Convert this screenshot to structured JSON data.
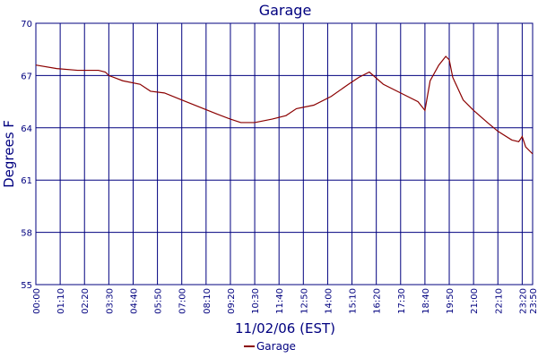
{
  "chart_data": {
    "type": "line",
    "title": "Garage",
    "x_label": "11/02/06 (EST)",
    "y_label": "Degrees F",
    "x": [
      0,
      60,
      120,
      180,
      200,
      210,
      250,
      300,
      330,
      370,
      420,
      470,
      520,
      560,
      590,
      630,
      680,
      720,
      750,
      800,
      850,
      900,
      930,
      960,
      1000,
      1050,
      1100,
      1120,
      1135,
      1160,
      1180,
      1190,
      1200,
      1230,
      1260,
      1300,
      1330,
      1370,
      1390,
      1400,
      1410,
      1430
    ],
    "series": [
      {
        "name": "Garage",
        "color": "#8b0000",
        "values": [
          67.6,
          67.4,
          67.3,
          67.3,
          67.2,
          67.0,
          66.7,
          66.5,
          66.1,
          66.0,
          65.6,
          65.2,
          64.8,
          64.5,
          64.3,
          64.3,
          64.5,
          64.7,
          65.1,
          65.3,
          65.8,
          66.5,
          66.9,
          67.2,
          66.5,
          66.0,
          65.5,
          65.0,
          66.7,
          67.6,
          68.1,
          67.9,
          66.9,
          65.6,
          65.0,
          64.3,
          63.8,
          63.3,
          63.2,
          63.5,
          62.9,
          62.5
        ]
      }
    ],
    "xlim": [
      0,
      1430
    ],
    "xticks": [
      {
        "value": 0,
        "label": "00:00"
      },
      {
        "value": 70,
        "label": "01:10"
      },
      {
        "value": 140,
        "label": "02:20"
      },
      {
        "value": 210,
        "label": "03:30"
      },
      {
        "value": 280,
        "label": "04:40"
      },
      {
        "value": 350,
        "label": "05:50"
      },
      {
        "value": 420,
        "label": "07:00"
      },
      {
        "value": 490,
        "label": "08:10"
      },
      {
        "value": 560,
        "label": "09:20"
      },
      {
        "value": 630,
        "label": "10:30"
      },
      {
        "value": 700,
        "label": "11:40"
      },
      {
        "value": 770,
        "label": "12:50"
      },
      {
        "value": 840,
        "label": "14:00"
      },
      {
        "value": 910,
        "label": "15:10"
      },
      {
        "value": 980,
        "label": "16:20"
      },
      {
        "value": 1050,
        "label": "17:30"
      },
      {
        "value": 1120,
        "label": "18:40"
      },
      {
        "value": 1190,
        "label": "19:50"
      },
      {
        "value": 1260,
        "label": "21:00"
      },
      {
        "value": 1330,
        "label": "22:10"
      },
      {
        "value": 1400,
        "label": "23:20"
      },
      {
        "value": 1430,
        "label": "23:50"
      }
    ],
    "ylim": [
      55,
      70
    ],
    "yticks": [
      55,
      58,
      61,
      64,
      67,
      70
    ],
    "grid": true,
    "grid_color": "#00007f",
    "legend": "bottom"
  }
}
